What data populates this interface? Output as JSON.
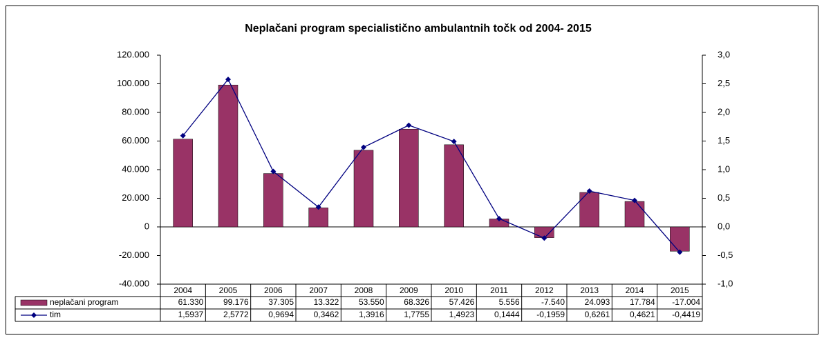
{
  "chart_data": {
    "type": "bar-line",
    "title": "Neplačani program specialistično ambulantnih točk od 2004- 2015",
    "categories": [
      "2004",
      "2005",
      "2006",
      "2007",
      "2008",
      "2009",
      "2010",
      "2011",
      "2012",
      "2013",
      "2014",
      "2015"
    ],
    "series": [
      {
        "name": "neplačani program",
        "type": "bar",
        "color": "#993366",
        "values": [
          61330,
          99176,
          37305,
          13322,
          53550,
          68326,
          57426,
          5556,
          -7540,
          24093,
          17784,
          -17004
        ],
        "value_labels": [
          "61.330",
          "99.176",
          "37.305",
          "13.322",
          "53.550",
          "68.326",
          "57.426",
          "5.556",
          "-7.540",
          "24.093",
          "17.784",
          "-17.004"
        ]
      },
      {
        "name": "tim",
        "type": "line",
        "axis": "y2",
        "color": "#000080",
        "values": [
          1.5937,
          2.5772,
          0.9694,
          0.3462,
          1.3916,
          1.7755,
          1.4923,
          0.1444,
          -0.1959,
          0.6261,
          0.4621,
          -0.4419
        ],
        "value_labels": [
          "1,5937",
          "2,5772",
          "0,9694",
          "0,3462",
          "1,3916",
          "1,7755",
          "1,4923",
          "0,1444",
          "-0,1959",
          "0,6261",
          "0,4621",
          "-0,4419"
        ]
      }
    ],
    "ylim": [
      -40000,
      120000
    ],
    "yticks": [
      {
        "value": -40000,
        "label": "-40.000"
      },
      {
        "value": -20000,
        "label": "-20.000"
      },
      0,
      {
        "value": 20000,
        "label": "20.000"
      },
      {
        "value": 40000,
        "label": "40.000"
      },
      {
        "value": 60000,
        "label": "60.000"
      },
      {
        "value": 80000,
        "label": "80.000"
      },
      {
        "value": 100000,
        "label": "100.000"
      },
      {
        "value": 120000,
        "label": "120.000"
      }
    ],
    "y2lim": [
      -1,
      3
    ],
    "y2ticks": [
      {
        "value": -1,
        "label": "-1,0"
      },
      {
        "value": -0.5,
        "label": "-0,5"
      },
      {
        "value": 0,
        "label": "0,0"
      },
      {
        "value": 0.5,
        "label": "0,5"
      },
      {
        "value": 1,
        "label": "1,0"
      },
      {
        "value": 1.5,
        "label": "1,5"
      },
      {
        "value": 2,
        "label": "2,0"
      },
      {
        "value": 2.5,
        "label": "2,5"
      },
      {
        "value": 3,
        "label": "3,0"
      }
    ],
    "grid": false
  }
}
